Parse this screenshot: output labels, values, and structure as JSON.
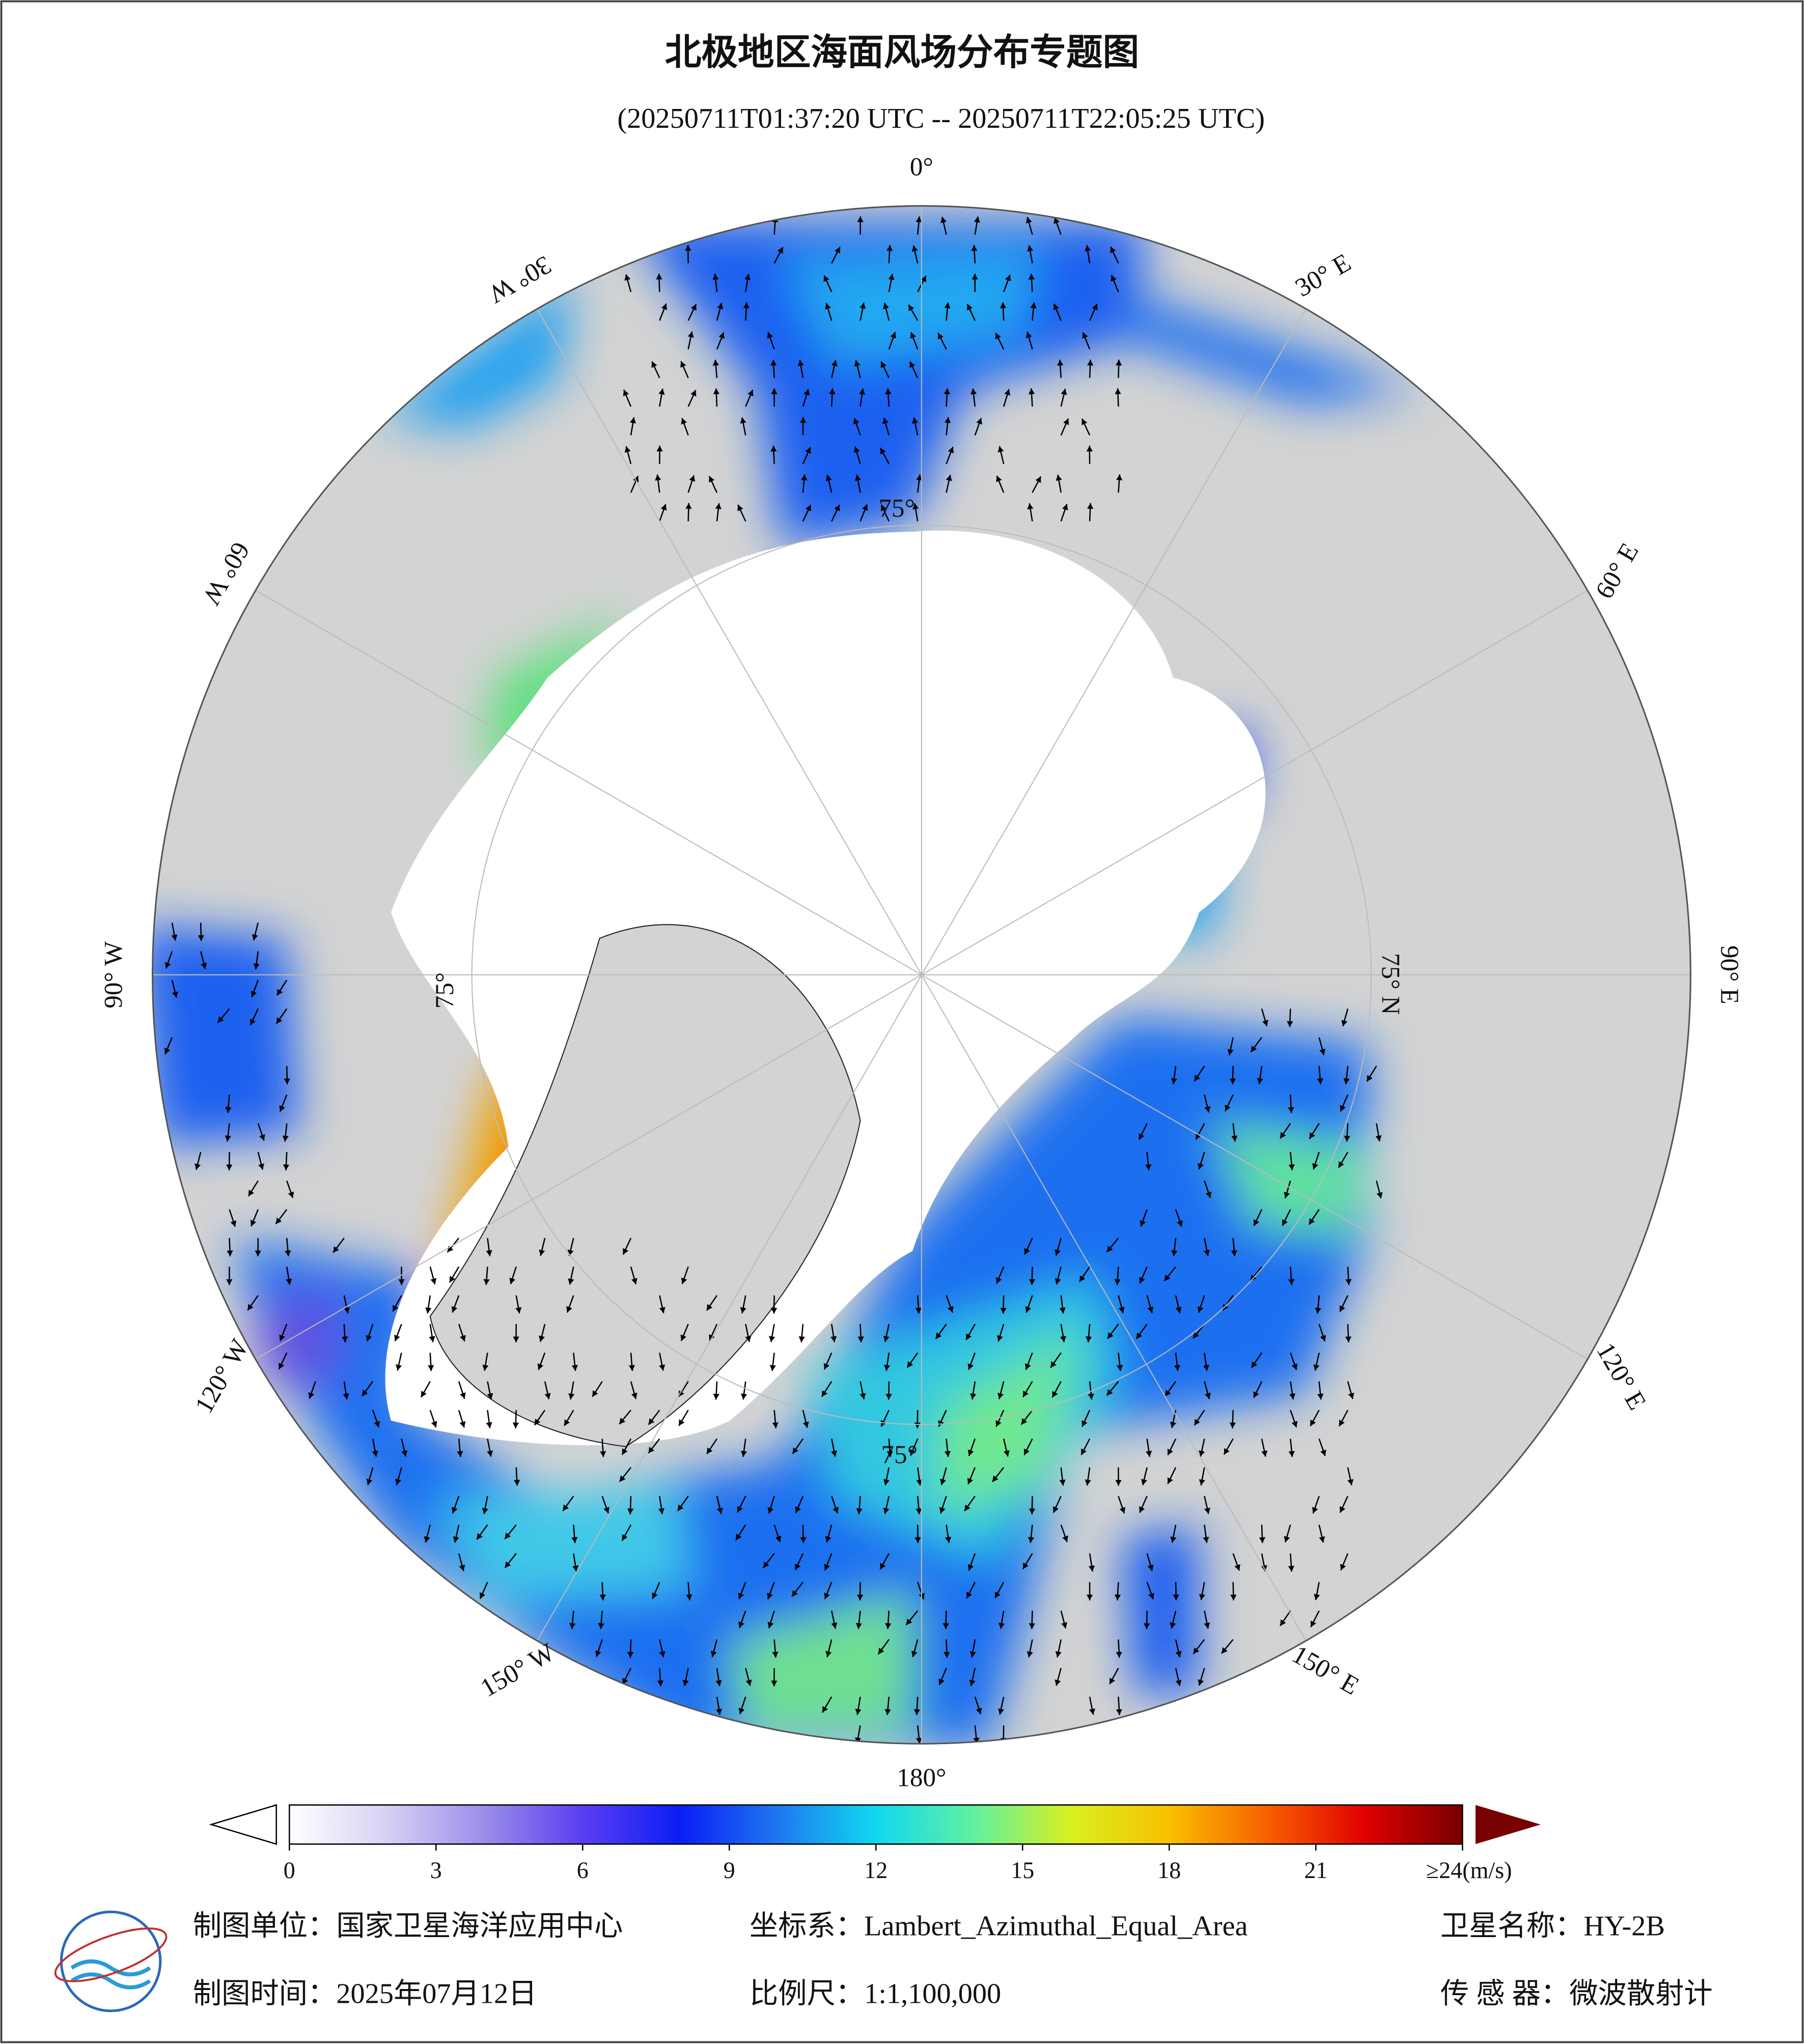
{
  "header": {
    "title": "北极地区海面风场分布专题图",
    "subtitle": "(20250711T01:37:20 UTC -- 20250711T22:05:25 UTC)"
  },
  "map": {
    "longitude_labels": [
      "180°",
      "150° E",
      "120° E",
      "90° E",
      "60° E",
      "30° E",
      "0°",
      "30° W",
      "60° W",
      "90° W",
      "120° W",
      "150° W"
    ],
    "latitude_labels": [
      "75°",
      "75°",
      "75°",
      "75° N"
    ]
  },
  "colorbar": {
    "range": [
      0,
      24
    ],
    "ticks": [
      0,
      3,
      6,
      9,
      12,
      15,
      18,
      21,
      {
        "value": 24,
        "label": "≥24(m/s)"
      }
    ],
    "colors": [
      "#ffffff",
      "#d8d0f4",
      "#9a8ee8",
      "#5a3ef0",
      "#0a1ef5",
      "#1e78f0",
      "#10d8f0",
      "#60f0a0",
      "#d8f020",
      "#f8c000",
      "#f86000",
      "#e00000",
      "#780000"
    ]
  },
  "footer": {
    "producer": "制图单位：国家卫星海洋应用中心",
    "projection": "坐标系：Lambert_Azimuthal_Equal_Area",
    "satellite": "卫星名称：HY-2B",
    "date": "制图时间：2025年07月12日",
    "scale": "比例尺：1:1,100,000",
    "sensor": "传 感 器：微波散射计"
  }
}
